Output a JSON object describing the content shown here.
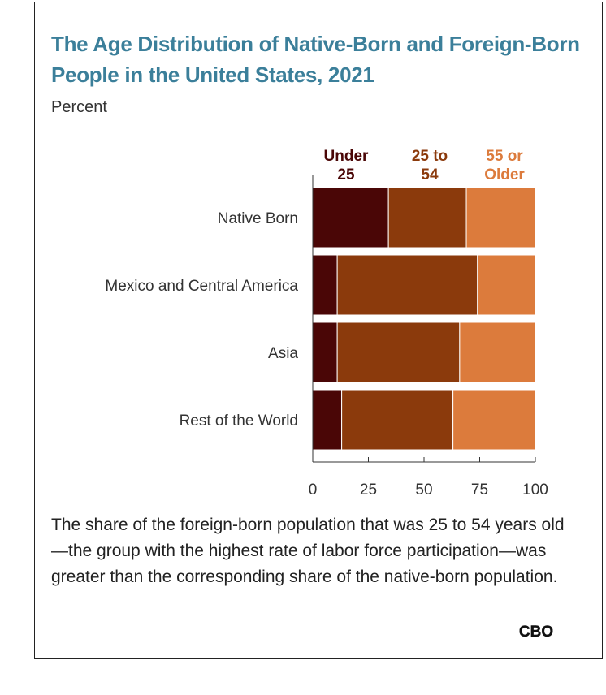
{
  "chart_data": {
    "type": "bar",
    "orientation": "horizontal",
    "stacked": true,
    "title": "The Age Distribution of Native-Born and Foreign-Born People in the United States, 2021",
    "subtitle": "Percent",
    "categories": [
      "Native Born",
      "Mexico and Central America",
      "Asia",
      "Rest of the World"
    ],
    "series": [
      {
        "name": "Under 25",
        "legend_lines": [
          "Under",
          "25"
        ],
        "color": "#4a0606",
        "values": [
          34,
          11,
          11,
          13
        ]
      },
      {
        "name": "25 to 54",
        "legend_lines": [
          "25 to",
          "54"
        ],
        "color": "#8b3a0c",
        "values": [
          35,
          63,
          55,
          50
        ]
      },
      {
        "name": "55 or Older",
        "legend_lines": [
          "55 or",
          "Older"
        ],
        "color": "#dc7b3c",
        "values": [
          31,
          26,
          34,
          37
        ]
      }
    ],
    "xlim": [
      0,
      100
    ],
    "xticks": [
      0,
      25,
      50,
      75,
      100
    ],
    "grid": false,
    "legend_placement": "top"
  },
  "caption": "The share of the foreign-born population that was 25 to 54 years old—the group with the highest rate of labor force participation—was greater than the corresponding share of the native-born population.",
  "logo_text": "CBO"
}
